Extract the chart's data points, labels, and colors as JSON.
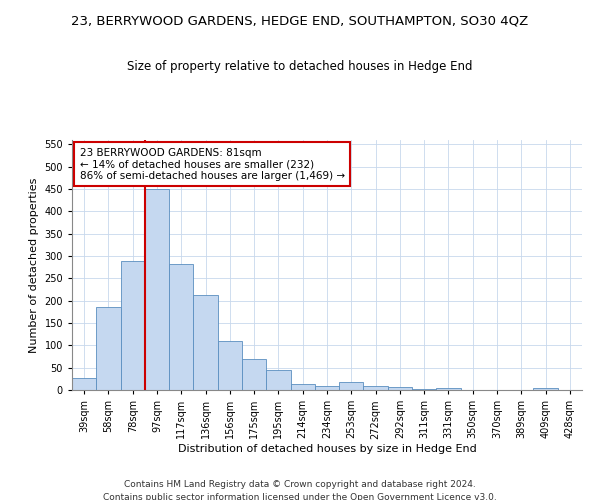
{
  "title": "23, BERRYWOOD GARDENS, HEDGE END, SOUTHAMPTON, SO30 4QZ",
  "subtitle": "Size of property relative to detached houses in Hedge End",
  "xlabel": "Distribution of detached houses by size in Hedge End",
  "ylabel": "Number of detached properties",
  "categories": [
    "39sqm",
    "58sqm",
    "78sqm",
    "97sqm",
    "117sqm",
    "136sqm",
    "156sqm",
    "175sqm",
    "195sqm",
    "214sqm",
    "234sqm",
    "253sqm",
    "272sqm",
    "292sqm",
    "311sqm",
    "331sqm",
    "350sqm",
    "370sqm",
    "389sqm",
    "409sqm",
    "428sqm"
  ],
  "values": [
    28,
    185,
    290,
    450,
    283,
    212,
    110,
    70,
    45,
    13,
    10,
    18,
    10,
    7,
    3,
    5,
    0,
    0,
    0,
    5,
    0
  ],
  "bar_color": "#c5d8f0",
  "bar_edge_color": "#5a8ec0",
  "vline_x": 2.5,
  "vline_color": "#cc0000",
  "annotation_text": "23 BERRYWOOD GARDENS: 81sqm\n← 14% of detached houses are smaller (232)\n86% of semi-detached houses are larger (1,469) →",
  "annotation_box_color": "#ffffff",
  "annotation_box_edge": "#cc0000",
  "ylim": [
    0,
    560
  ],
  "yticks": [
    0,
    50,
    100,
    150,
    200,
    250,
    300,
    350,
    400,
    450,
    500,
    550
  ],
  "footer1": "Contains HM Land Registry data © Crown copyright and database right 2024.",
  "footer2": "Contains public sector information licensed under the Open Government Licence v3.0.",
  "bg_color": "#ffffff",
  "grid_color": "#c8d8ec",
  "title_fontsize": 9.5,
  "subtitle_fontsize": 8.5,
  "xlabel_fontsize": 8,
  "ylabel_fontsize": 8,
  "tick_fontsize": 7,
  "annotation_fontsize": 7.5,
  "footer_fontsize": 6.5
}
